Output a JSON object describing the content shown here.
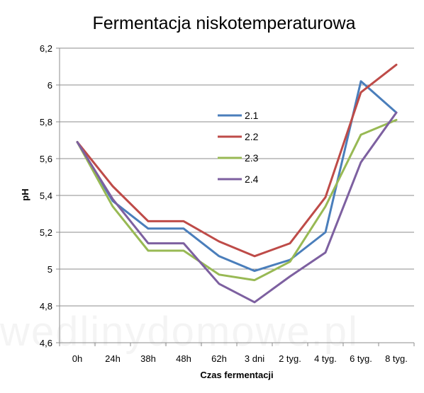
{
  "watermark": "wedlinydomowe.pl",
  "chart_data": {
    "type": "line",
    "title": "Fermentacja niskotemperaturowa",
    "xlabel": "Czas fermentacji",
    "ylabel": "pH",
    "categories": [
      "0h",
      "24h",
      "38h",
      "48h",
      "62h",
      "3 dni",
      "2 tyg.",
      "4 tyg.",
      "6 tyg.",
      "8 tyg."
    ],
    "ylim": [
      4.6,
      6.2
    ],
    "yticks": [
      4.6,
      4.8,
      5.0,
      5.2,
      5.4,
      5.6,
      5.8,
      6.0,
      6.2
    ],
    "ytick_labels": [
      "4,6",
      "4,8",
      "5",
      "5,2",
      "5,4",
      "5,6",
      "5,8",
      "6",
      "6,2"
    ],
    "grid": "horizontal",
    "legend_position": "center",
    "series": [
      {
        "name": "2.1",
        "color": "#4a7ebb",
        "values": [
          5.69,
          5.37,
          5.22,
          5.22,
          5.07,
          4.99,
          5.05,
          5.2,
          6.02,
          5.85
        ]
      },
      {
        "name": "2.2",
        "color": "#be4b48",
        "values": [
          5.69,
          5.45,
          5.26,
          5.26,
          5.15,
          5.07,
          5.14,
          5.39,
          5.96,
          6.11
        ]
      },
      {
        "name": "2.3",
        "color": "#98b954",
        "values": [
          5.69,
          5.34,
          5.1,
          5.1,
          4.97,
          4.94,
          5.04,
          5.34,
          5.73,
          5.81
        ]
      },
      {
        "name": "2.4",
        "color": "#7d60a0",
        "values": [
          5.69,
          5.38,
          5.14,
          5.14,
          4.92,
          4.82,
          4.96,
          5.09,
          5.58,
          5.85
        ]
      }
    ]
  }
}
